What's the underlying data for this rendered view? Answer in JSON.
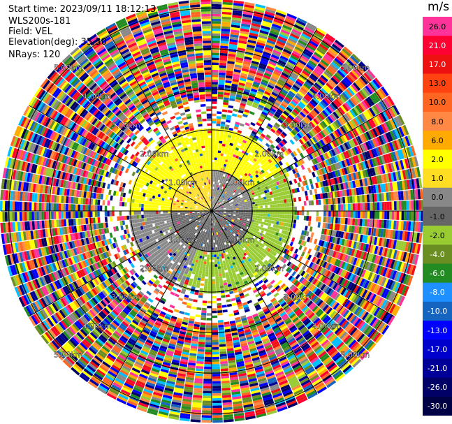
{
  "header": {
    "start_time": "Start time: 2023/09/11 18:12:13",
    "site": "WLS200s-181",
    "field": "Field: VEL",
    "elevation": "Elevation(deg): 35.30",
    "nrays": "NRays: 120"
  },
  "colorbar": {
    "units": "m/s",
    "levels": [
      {
        "label": "26.0",
        "color": "#ff3399"
      },
      {
        "label": "21.0",
        "color": "#ff0033"
      },
      {
        "label": "17.0",
        "color": "#ee1111"
      },
      {
        "label": "13.0",
        "color": "#ff4411"
      },
      {
        "label": "10.0",
        "color": "#ff6622"
      },
      {
        "label": "8.0",
        "color": "#ff8844"
      },
      {
        "label": "6.0",
        "color": "#ffaa00"
      },
      {
        "label": "2.0",
        "color": "#ffff00"
      },
      {
        "label": "1.0",
        "color": "#ffdd22"
      },
      {
        "label": "0.0",
        "color": "#888888"
      },
      {
        "label": "-1.0",
        "color": "#666666"
      },
      {
        "label": "-2.0",
        "color": "#99cc33"
      },
      {
        "label": "-4.0",
        "color": "#6b8e23"
      },
      {
        "label": "-6.0",
        "color": "#228b22"
      },
      {
        "label": "-8.0",
        "color": "#1e90ff"
      },
      {
        "label": "-10.0",
        "color": "#1565c0"
      },
      {
        "label": "-13.0",
        "color": "#0000ff"
      },
      {
        "label": "-17.0",
        "color": "#0000cc"
      },
      {
        "label": "-21.0",
        "color": "#000099"
      },
      {
        "label": "-26.0",
        "color": "#000066"
      },
      {
        "label": "-30.0",
        "color": "#000044"
      }
    ]
  },
  "chart_data": {
    "type": "heatmap",
    "plot": "PPI radial velocity",
    "field": "VEL",
    "elevation_deg": 35.3,
    "n_rays": 120,
    "range_rings_km": [
      1.0,
      2.0,
      3.0,
      4.0,
      5.0
    ],
    "ring_labels": [
      "1.00km",
      "2.00km",
      "3.00km",
      "4.00km",
      "5.00km"
    ],
    "max_range_km": 5.2,
    "spokes_deg": [
      0,
      30,
      60,
      90,
      120,
      150,
      180,
      210,
      240,
      270,
      300,
      330
    ],
    "velocity_pattern": [
      {
        "range_km": [
          0.0,
          1.0
        ],
        "azimuth_deg": [
          270,
          360
        ],
        "value": 1.0
      },
      {
        "range_km": [
          0.0,
          1.0
        ],
        "azimuth_deg": [
          0,
          90
        ],
        "value": 0.0
      },
      {
        "range_km": [
          0.0,
          1.0
        ],
        "azimuth_deg": [
          90,
          270
        ],
        "value": -1.0
      },
      {
        "range_km": [
          1.0,
          2.0
        ],
        "azimuth_deg": [
          270,
          360
        ],
        "value": 2.0
      },
      {
        "range_km": [
          1.0,
          2.0
        ],
        "azimuth_deg": [
          0,
          60
        ],
        "value": 2.0
      },
      {
        "range_km": [
          1.0,
          2.0
        ],
        "azimuth_deg": [
          60,
          200
        ],
        "value": -2.0
      },
      {
        "range_km": [
          1.0,
          2.0
        ],
        "azimuth_deg": [
          200,
          270
        ],
        "value": 0.0
      },
      {
        "range_km": [
          2.0,
          5.2
        ],
        "azimuth_deg": [
          0,
          360
        ],
        "value": "noise"
      }
    ]
  }
}
